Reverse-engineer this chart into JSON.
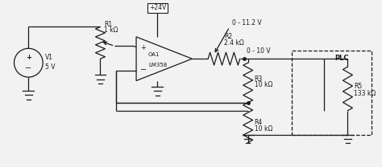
{
  "bg_color": "#f2f2f2",
  "line_color": "#1a1a1a",
  "text_color": "#1a1a1a",
  "fig_width": 4.74,
  "fig_height": 2.08,
  "dpi": 100,
  "xlim": [
    0,
    47.4
  ],
  "ylim": [
    0,
    20.8
  ]
}
